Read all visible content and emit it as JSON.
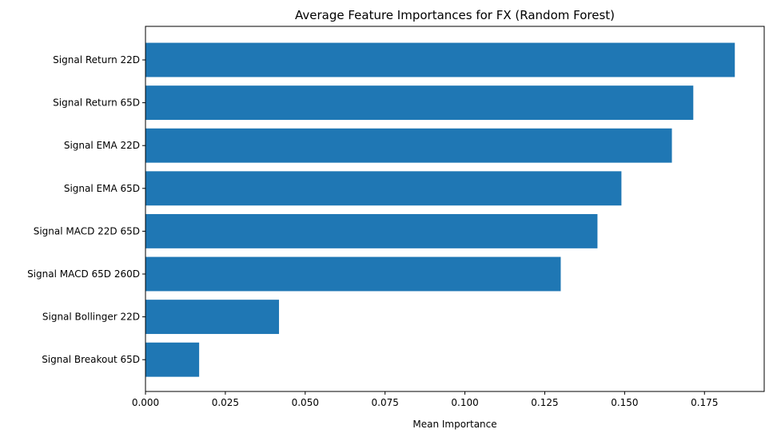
{
  "chart_data": {
    "type": "bar",
    "orientation": "horizontal",
    "title": "Average Feature Importances for FX (Random Forest)",
    "xlabel": "Mean Importance",
    "ylabel": "",
    "categories": [
      "Signal Return 22D",
      "Signal Return 65D",
      "Signal EMA 22D",
      "Signal EMA 65D",
      "Signal MACD 22D 65D",
      "Signal MACD 65D 260D",
      "Signal Bollinger 22D",
      "Signal Breakout 65D"
    ],
    "values": [
      0.1845,
      0.1715,
      0.1648,
      0.149,
      0.1415,
      0.13,
      0.0418,
      0.0168
    ],
    "xlim": [
      0,
      0.1937
    ],
    "xticks": [
      0.0,
      0.025,
      0.05,
      0.075,
      0.1,
      0.125,
      0.15,
      0.175
    ],
    "xtick_labels": [
      "0.000",
      "0.025",
      "0.050",
      "0.075",
      "0.100",
      "0.125",
      "0.150",
      "0.175"
    ],
    "bar_color": "#1f77b4",
    "grid": false
  }
}
